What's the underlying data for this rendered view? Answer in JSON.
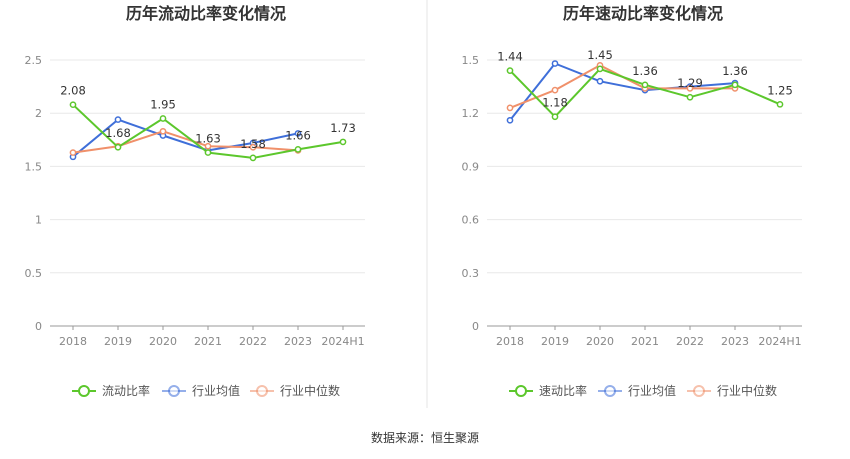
{
  "source_label": "数据来源：恒生聚源",
  "chart_data": [
    {
      "type": "line",
      "title": "历年流动比率变化情况",
      "categories": [
        "2018",
        "2019",
        "2020",
        "2021",
        "2022",
        "2023",
        "2024H1"
      ],
      "ylim": [
        0,
        2.5
      ],
      "yticks": [
        0,
        0.5,
        1,
        1.5,
        2,
        2.5
      ],
      "ytick_labels": [
        "0",
        "0.5",
        "1",
        "1.5",
        "2",
        "2.5"
      ],
      "series": [
        {
          "name": "流动比率",
          "color": "#5cc72c",
          "values": [
            2.08,
            1.68,
            1.95,
            1.63,
            1.58,
            1.66,
            1.73
          ],
          "labels": [
            "2.08",
            "1.68",
            "1.95",
            "1.63",
            "1.58",
            "1.66",
            "1.73"
          ]
        },
        {
          "name": "行业均值",
          "color": "#3f6fd9",
          "values": [
            1.59,
            1.94,
            1.79,
            1.65,
            1.72,
            1.81,
            null
          ]
        },
        {
          "name": "行业中位数",
          "color": "#f0906a",
          "values": [
            1.63,
            1.69,
            1.83,
            1.69,
            1.68,
            1.65,
            null
          ]
        }
      ]
    },
    {
      "type": "line",
      "title": "历年速动比率变化情况",
      "categories": [
        "2018",
        "2019",
        "2020",
        "2021",
        "2022",
        "2023",
        "2024H1"
      ],
      "ylim": [
        0,
        1.5
      ],
      "yticks": [
        0,
        0.3,
        0.6,
        0.9,
        1.2,
        1.5
      ],
      "ytick_labels": [
        "0",
        "0.3",
        "0.6",
        "0.9",
        "1.2",
        "1.5"
      ],
      "series": [
        {
          "name": "速动比率",
          "color": "#5cc72c",
          "values": [
            1.44,
            1.18,
            1.45,
            1.36,
            1.29,
            1.36,
            1.25
          ],
          "labels": [
            "1.44",
            "1.18",
            "1.45",
            "1.36",
            "1.29",
            "1.36",
            "1.25"
          ]
        },
        {
          "name": "行业均值",
          "color": "#3f6fd9",
          "values": [
            1.16,
            1.48,
            1.38,
            1.33,
            1.35,
            1.37,
            null
          ]
        },
        {
          "name": "行业中位数",
          "color": "#f0906a",
          "values": [
            1.23,
            1.33,
            1.47,
            1.34,
            1.34,
            1.34,
            null
          ]
        }
      ]
    }
  ]
}
